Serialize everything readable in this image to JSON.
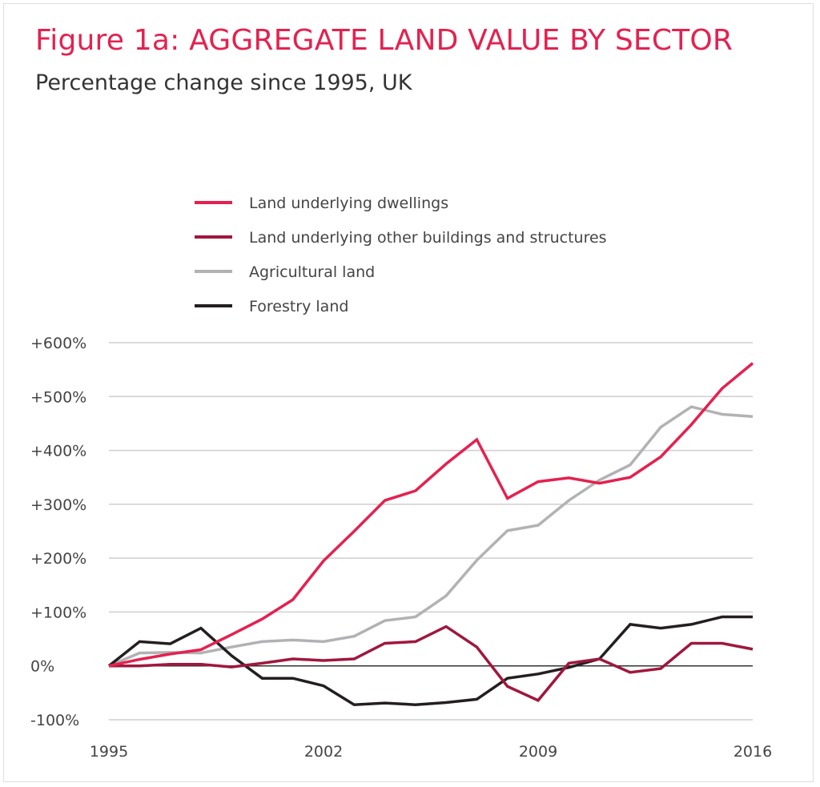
{
  "chart_data": {
    "type": "line",
    "title": "Figure 1a: AGGREGATE LAND VALUE BY SECTOR",
    "subtitle": "Percentage change since 1995, UK",
    "xlabel": "",
    "ylabel": "",
    "x": [
      1995,
      1996,
      1997,
      1998,
      1999,
      2000,
      2001,
      2002,
      2003,
      2004,
      2005,
      2006,
      2007,
      2008,
      2009,
      2010,
      2011,
      2012,
      2013,
      2014,
      2015,
      2016
    ],
    "x_ticks": [
      "1995",
      "2002",
      "2009",
      "2016"
    ],
    "y_ticks": [
      {
        "value": 600,
        "label": "+600%"
      },
      {
        "value": 500,
        "label": "+500%"
      },
      {
        "value": 400,
        "label": "+400%"
      },
      {
        "value": 300,
        "label": "+300%"
      },
      {
        "value": 200,
        "label": "+200%"
      },
      {
        "value": 100,
        "label": "+100%"
      },
      {
        "value": 0,
        "label": "0%"
      },
      {
        "value": -100,
        "label": "-100%"
      }
    ],
    "xlim": [
      1995,
      2016
    ],
    "ylim": [
      -100,
      600
    ],
    "grid": true,
    "legend_position": "top",
    "series": [
      {
        "name": "Land underlying dwellings",
        "color": "#e4214f",
        "values": [
          0,
          12,
          22,
          30,
          58,
          87,
          123,
          195,
          250,
          307,
          325,
          375,
          420,
          311,
          342,
          349,
          339,
          350,
          388,
          448,
          515,
          562
        ]
      },
      {
        "name": "Land underlying other buildings and structures",
        "color": "#a0173d",
        "values": [
          0,
          0,
          3,
          3,
          -2,
          5,
          13,
          10,
          13,
          42,
          45,
          73,
          35,
          -38,
          -64,
          5,
          13,
          -12,
          -5,
          42,
          42,
          31
        ]
      },
      {
        "name": "Agricultural land",
        "color": "#b2b2b4",
        "values": [
          0,
          24,
          25,
          24,
          35,
          45,
          48,
          45,
          55,
          84,
          91,
          130,
          196,
          251,
          261,
          307,
          345,
          373,
          443,
          481,
          467,
          463
        ]
      },
      {
        "name": "Forestry land",
        "color": "#231f20",
        "values": [
          0,
          45,
          41,
          70,
          19,
          -23,
          -23,
          -37,
          -72,
          -69,
          -72,
          -68,
          -62,
          -23,
          -15,
          -3,
          13,
          77,
          70,
          77,
          91,
          91
        ]
      }
    ]
  }
}
